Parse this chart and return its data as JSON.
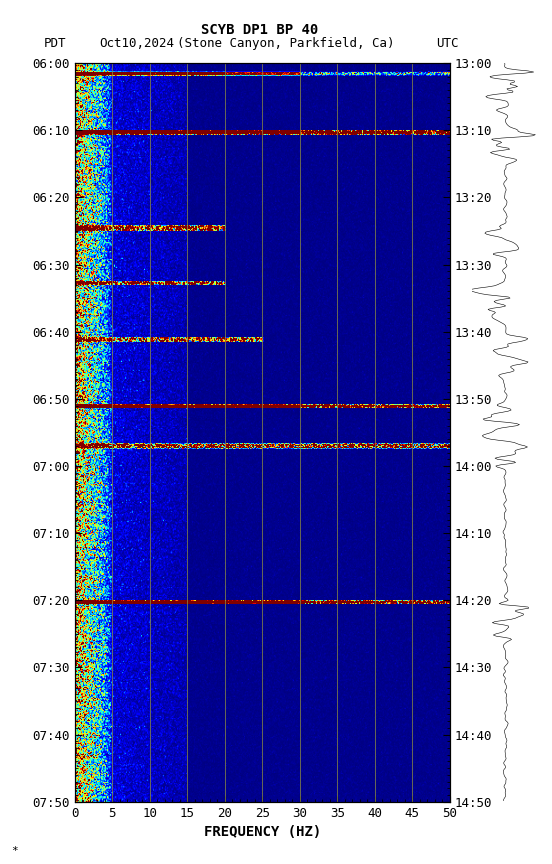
{
  "title_line1": "SCYB DP1 BP 40",
  "title_line2_pdt": "PDT",
  "title_line2_date": "Oct10,2024",
  "title_line2_loc": "(Stone Canyon, Parkfield, Ca)",
  "title_line2_utc": "UTC",
  "xlabel": "FREQUENCY (HZ)",
  "freq_min": 0,
  "freq_max": 50,
  "pdt_ticks": [
    "06:00",
    "06:10",
    "06:20",
    "06:30",
    "06:40",
    "06:50",
    "07:00",
    "07:10",
    "07:20",
    "07:30",
    "07:40",
    "07:50"
  ],
  "utc_ticks": [
    "13:00",
    "13:10",
    "13:20",
    "13:30",
    "13:40",
    "13:50",
    "14:00",
    "14:10",
    "14:20",
    "14:30",
    "14:40",
    "14:50"
  ],
  "freq_ticks": [
    0,
    5,
    10,
    15,
    20,
    25,
    30,
    35,
    40,
    45,
    50
  ],
  "vert_lines_freq": [
    5,
    10,
    15,
    20,
    25,
    30,
    35,
    40,
    45
  ],
  "vert_line_color": "#888844",
  "spectrogram_cmap": "jet",
  "n_time": 660,
  "n_freq": 500,
  "noise_seed": 42,
  "font_family": "monospace",
  "font_size": 9,
  "figsize": [
    5.52,
    8.64
  ],
  "dpi": 100
}
